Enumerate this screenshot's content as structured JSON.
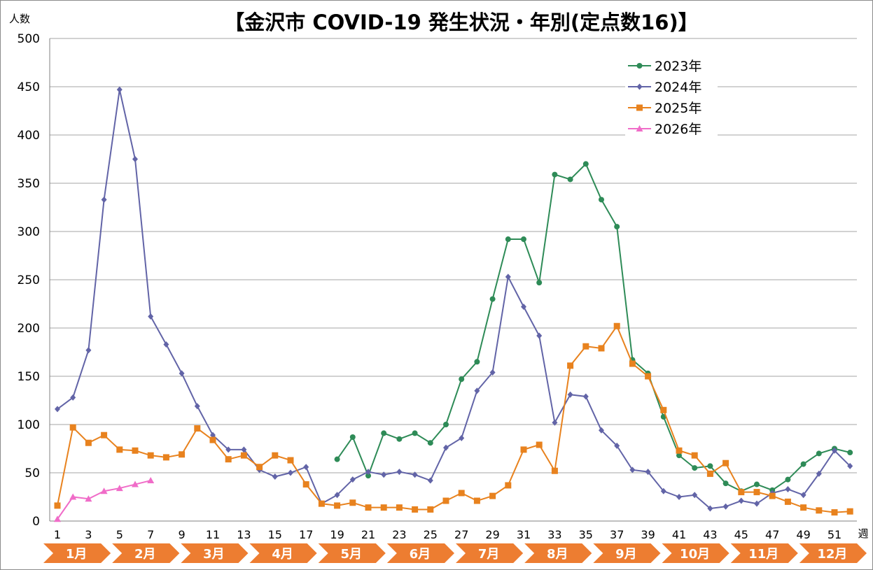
{
  "chart_data": {
    "type": "line",
    "title": "【金沢市 COVID-19 発生状況・年別(定点数16)】",
    "ylabel": "人数",
    "xlabel": "週",
    "ylim": [
      0,
      500
    ],
    "yticks": [
      0,
      50,
      100,
      150,
      200,
      250,
      300,
      350,
      400,
      450,
      500
    ],
    "xlim": [
      1,
      52
    ],
    "xticks": [
      1,
      3,
      5,
      7,
      9,
      11,
      13,
      15,
      17,
      19,
      21,
      23,
      25,
      27,
      29,
      31,
      33,
      35,
      37,
      39,
      41,
      43,
      45,
      47,
      49,
      51
    ],
    "grid": "horizontal",
    "legend": "top-right",
    "months": [
      "1月",
      "2月",
      "3月",
      "4月",
      "5月",
      "6月",
      "7月",
      "8月",
      "9月",
      "10月",
      "11月",
      "12月"
    ],
    "series": [
      {
        "name": "2023年",
        "color": "#2e8b57",
        "marker": "circle",
        "x": [
          19,
          20,
          21,
          22,
          23,
          24,
          25,
          26,
          27,
          28,
          29,
          30,
          31,
          32,
          33,
          34,
          35,
          36,
          37,
          38,
          39,
          40,
          41,
          42,
          43,
          44,
          45,
          46,
          47,
          48,
          49,
          50,
          51,
          52
        ],
        "values": [
          64,
          87,
          47,
          91,
          85,
          91,
          81,
          100,
          147,
          165,
          230,
          292,
          292,
          247,
          359,
          354,
          370,
          333,
          305,
          167,
          153,
          108,
          68,
          55,
          57,
          39,
          31,
          38,
          32,
          43,
          59,
          70,
          75,
          71
        ]
      },
      {
        "name": "2024年",
        "color": "#6264a7",
        "marker": "diamond",
        "x": [
          1,
          2,
          3,
          4,
          5,
          6,
          7,
          8,
          9,
          10,
          11,
          12,
          13,
          14,
          15,
          16,
          17,
          18,
          19,
          20,
          21,
          22,
          23,
          24,
          25,
          26,
          27,
          28,
          29,
          30,
          31,
          32,
          33,
          34,
          35,
          36,
          37,
          38,
          39,
          40,
          41,
          42,
          43,
          44,
          45,
          46,
          47,
          48,
          49,
          50,
          51,
          52
        ],
        "values": [
          116,
          128,
          177,
          333,
          447,
          375,
          212,
          183,
          153,
          119,
          89,
          74,
          74,
          53,
          46,
          50,
          56,
          18,
          27,
          43,
          51,
          48,
          51,
          48,
          42,
          76,
          86,
          135,
          154,
          253,
          222,
          192,
          102,
          131,
          129,
          94,
          78,
          53,
          51,
          31,
          25,
          27,
          13,
          15,
          21,
          18,
          29,
          33,
          27,
          49,
          73,
          57
        ]
      },
      {
        "name": "2025年",
        "color": "#e8821e",
        "marker": "square",
        "x": [
          1,
          2,
          3,
          4,
          5,
          6,
          7,
          8,
          9,
          10,
          11,
          12,
          13,
          14,
          15,
          16,
          17,
          18,
          19,
          20,
          21,
          22,
          23,
          24,
          25,
          26,
          27,
          28,
          29,
          30,
          31,
          32,
          33,
          34,
          35,
          36,
          37,
          38,
          39,
          40,
          41,
          42,
          43,
          44,
          45,
          46,
          47,
          48,
          49,
          50,
          51,
          52
        ],
        "values": [
          16,
          97,
          81,
          89,
          74,
          73,
          68,
          66,
          69,
          96,
          84,
          64,
          68,
          56,
          68,
          63,
          38,
          18,
          16,
          19,
          14,
          14,
          14,
          12,
          12,
          21,
          29,
          21,
          26,
          37,
          74,
          79,
          52,
          161,
          181,
          179,
          202,
          163,
          150,
          115,
          73,
          68,
          49,
          60,
          30,
          30,
          26,
          20,
          14,
          11,
          9,
          10
        ]
      },
      {
        "name": "2026年",
        "color": "#f06cc8",
        "marker": "triangle",
        "x": [
          1,
          2,
          3,
          4,
          5,
          6,
          7
        ],
        "values": [
          2,
          25,
          23,
          31,
          34,
          38,
          42
        ]
      }
    ]
  }
}
